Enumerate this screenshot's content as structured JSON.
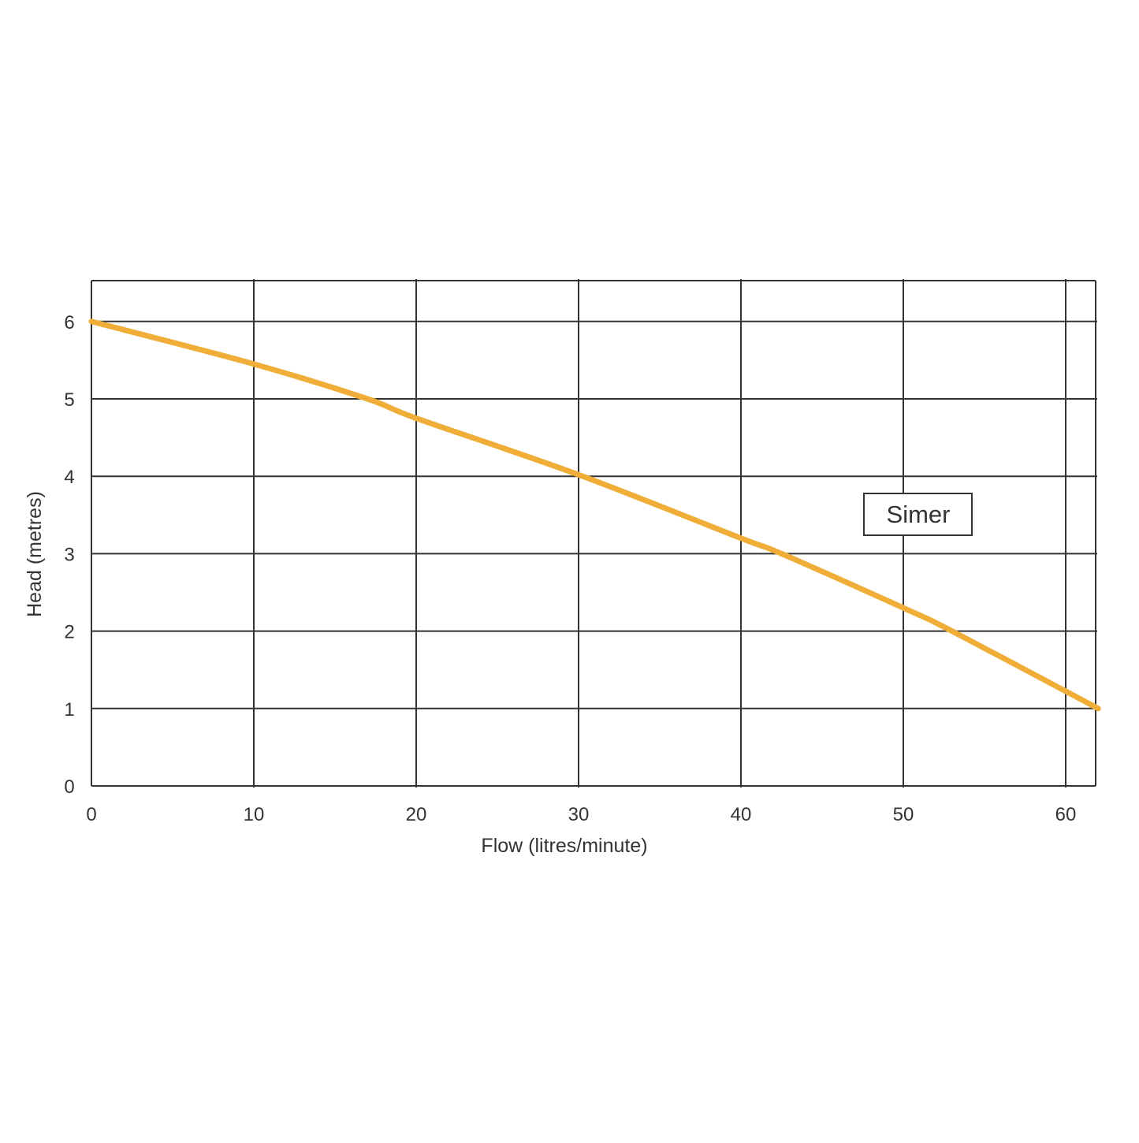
{
  "chart_data": {
    "type": "line",
    "title": "",
    "xlabel": "Flow (litres/minute)",
    "ylabel": "Head (metres)",
    "xlim": [
      0,
      62
    ],
    "ylim": [
      0,
      6.5
    ],
    "xticks": [
      0,
      10,
      20,
      30,
      40,
      50,
      60
    ],
    "yticks": [
      0,
      1,
      2,
      3,
      4,
      5,
      6
    ],
    "grid": true,
    "legend": "right, inside plot area",
    "series": [
      {
        "name": "Simer",
        "color": "#F0AD37",
        "x": [
          0,
          10,
          17,
          20,
          30,
          40,
          42.5,
          50,
          53,
          62
        ],
        "y": [
          6.0,
          5.45,
          5.0,
          4.75,
          4.02,
          3.2,
          3.0,
          2.3,
          2.0,
          1.0
        ]
      }
    ]
  }
}
